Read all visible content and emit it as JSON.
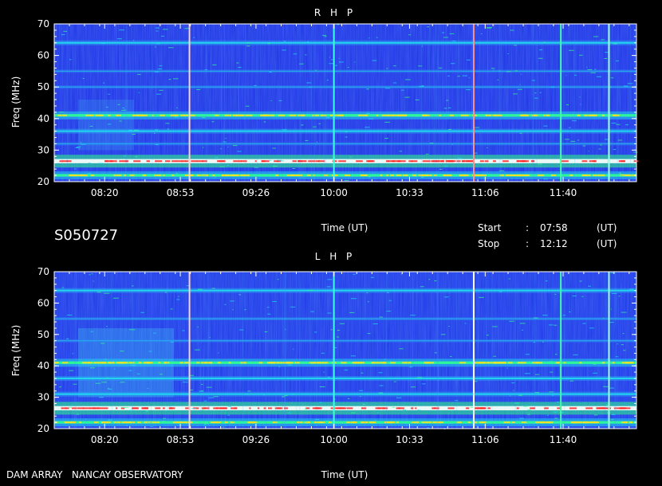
{
  "page": {
    "source_label": "S050727",
    "observatory": "DAM ARRAY   NANCAY OBSERVATORY",
    "time_axis_label": "Time (UT)",
    "start_label": "Start",
    "stop_label": "Stop",
    "start_time": "07:58",
    "stop_time": "12:12",
    "colon": ":",
    "unit": "(UT)"
  },
  "chart_data": [
    {
      "type": "heatmap",
      "title": "R H P",
      "xlabel": "Time (UT)",
      "ylabel": "Freq (MHz)",
      "xlim": [
        "07:58",
        "12:12"
      ],
      "ylim": [
        20,
        70
      ],
      "y_ticks": [
        20,
        30,
        40,
        50,
        60,
        70
      ],
      "x_ticks": [
        "08:20",
        "08:53",
        "09:26",
        "10:00",
        "10:33",
        "11:06",
        "11:40"
      ],
      "background_color": "#1c2ee6",
      "colorscale": [
        "#1428e0",
        "#2a7ef0",
        "#20e0f0",
        "#30ff80",
        "#ffffff",
        "#ff2020"
      ],
      "emission_bands": [
        {
          "freq": 26.5,
          "intensity": "very high"
        },
        {
          "freq": 22,
          "intensity": "high"
        },
        {
          "freq": 41,
          "intensity": "high"
        },
        {
          "freq": 36,
          "intensity": "medium"
        },
        {
          "freq": 32,
          "intensity": "low"
        },
        {
          "freq": 64,
          "intensity": "medium"
        },
        {
          "freq": 55,
          "intensity": "low"
        },
        {
          "freq": 50,
          "intensity": "low"
        }
      ],
      "vertical_markers": [
        {
          "time": "08:57",
          "color": "#ffd0d0"
        },
        {
          "time": "10:00",
          "color": "#40ffe0"
        },
        {
          "time": "11:01",
          "color": "#ff9090"
        },
        {
          "time": "11:39",
          "color": "#40ffa0"
        },
        {
          "time": "12:00",
          "color": "#a0ffe0"
        }
      ]
    },
    {
      "type": "heatmap",
      "title": "L H P",
      "xlabel": "Time (UT)",
      "ylabel": "Freq (MHz)",
      "xlim": [
        "07:58",
        "12:12"
      ],
      "ylim": [
        20,
        70
      ],
      "y_ticks": [
        20,
        30,
        40,
        50,
        60,
        70
      ],
      "x_ticks": [
        "08:20",
        "08:53",
        "09:26",
        "10:00",
        "10:33",
        "11:06",
        "11:40"
      ],
      "background_color": "#1c34e8",
      "colorscale": [
        "#1428e0",
        "#2a7ef0",
        "#20e0f0",
        "#30ff80",
        "#ffffff",
        "#ff2020"
      ],
      "emission_bands": [
        {
          "freq": 26.5,
          "intensity": "very high"
        },
        {
          "freq": 22,
          "intensity": "high"
        },
        {
          "freq": 41,
          "intensity": "high"
        },
        {
          "freq": 36,
          "intensity": "medium"
        },
        {
          "freq": 31,
          "intensity": "medium"
        },
        {
          "freq": 64,
          "intensity": "medium"
        },
        {
          "freq": 55,
          "intensity": "low"
        },
        {
          "freq": 48,
          "intensity": "low"
        }
      ],
      "vertical_markers": [
        {
          "time": "08:57",
          "color": "#ffd0d0"
        },
        {
          "time": "10:00",
          "color": "#40ffe0"
        },
        {
          "time": "11:01",
          "color": "#ffffff"
        },
        {
          "time": "11:39",
          "color": "#40ffa0"
        },
        {
          "time": "12:00",
          "color": "#a0ffe0"
        }
      ]
    }
  ]
}
